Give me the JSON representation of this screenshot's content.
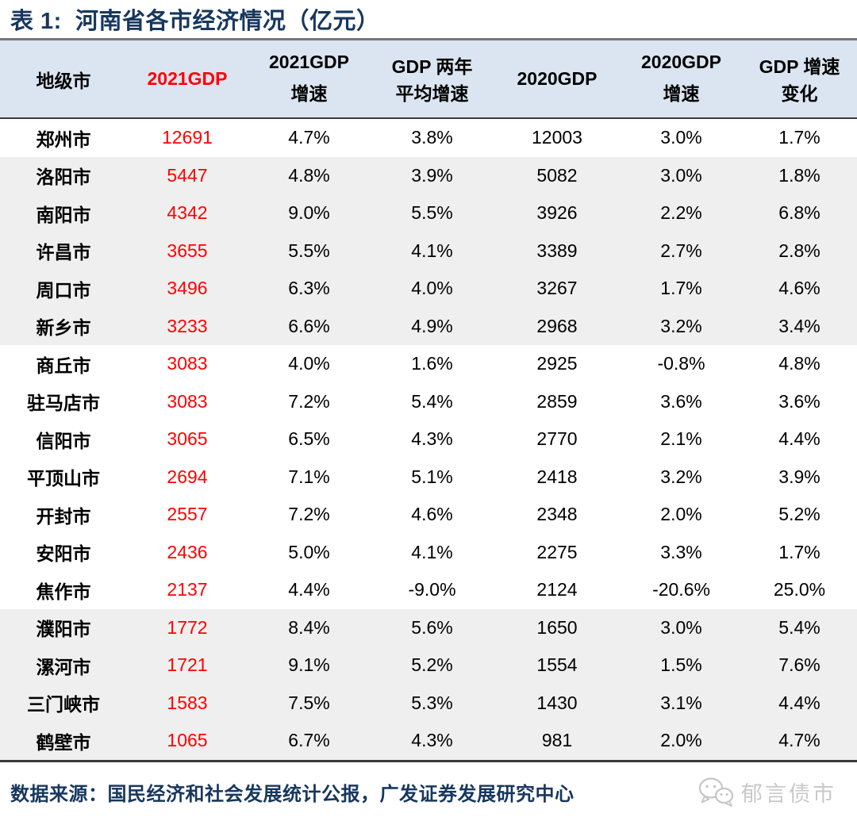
{
  "title": "表 1:  河南省各市经济情况（亿元）",
  "chart_data": {
    "type": "table",
    "title": "表 1:  河南省各市经济情况（亿元）",
    "unit": "亿元",
    "columns": [
      "地级市",
      "2021GDP",
      "2021GDP增速",
      "GDP两年平均增速",
      "2020GDP",
      "2020GDP增速",
      "GDP增速变化"
    ],
    "header_lines": [
      [
        "地级市"
      ],
      [
        "2021GDP"
      ],
      [
        "2021GDP",
        "增速"
      ],
      [
        "GDP 两年",
        "平均增速"
      ],
      [
        "2020GDP"
      ],
      [
        "2020GDP",
        "增速"
      ],
      [
        "GDP 增速",
        "变化"
      ]
    ],
    "red_header_index": 1,
    "red_value_column": 1,
    "shaded_row_indices": [
      1,
      2,
      3,
      4,
      5,
      13,
      14,
      15,
      16
    ],
    "rows": [
      [
        "郑州市",
        "12691",
        "4.7%",
        "3.8%",
        "12003",
        "3.0%",
        "1.7%"
      ],
      [
        "洛阳市",
        "5447",
        "4.8%",
        "3.9%",
        "5082",
        "3.0%",
        "1.8%"
      ],
      [
        "南阳市",
        "4342",
        "9.0%",
        "5.5%",
        "3926",
        "2.2%",
        "6.8%"
      ],
      [
        "许昌市",
        "3655",
        "5.5%",
        "4.1%",
        "3389",
        "2.7%",
        "2.8%"
      ],
      [
        "周口市",
        "3496",
        "6.3%",
        "4.0%",
        "3267",
        "1.7%",
        "4.6%"
      ],
      [
        "新乡市",
        "3233",
        "6.6%",
        "4.9%",
        "2968",
        "3.2%",
        "3.4%"
      ],
      [
        "商丘市",
        "3083",
        "4.0%",
        "1.6%",
        "2925",
        "-0.8%",
        "4.8%"
      ],
      [
        "驻马店市",
        "3083",
        "7.2%",
        "5.4%",
        "2859",
        "3.6%",
        "3.6%"
      ],
      [
        "信阳市",
        "3065",
        "6.5%",
        "4.3%",
        "2770",
        "2.1%",
        "4.4%"
      ],
      [
        "平顶山市",
        "2694",
        "7.1%",
        "5.1%",
        "2418",
        "3.2%",
        "3.9%"
      ],
      [
        "开封市",
        "2557",
        "7.2%",
        "4.6%",
        "2348",
        "2.0%",
        "5.2%"
      ],
      [
        "安阳市",
        "2436",
        "5.0%",
        "4.1%",
        "2275",
        "3.3%",
        "1.7%"
      ],
      [
        "焦作市",
        "2137",
        "4.4%",
        "-9.0%",
        "2124",
        "-20.6%",
        "25.0%"
      ],
      [
        "濮阳市",
        "1772",
        "8.4%",
        "5.6%",
        "1650",
        "3.0%",
        "5.4%"
      ],
      [
        "漯河市",
        "1721",
        "9.1%",
        "5.2%",
        "1554",
        "1.5%",
        "7.6%"
      ],
      [
        "三门峡市",
        "1583",
        "7.5%",
        "5.3%",
        "1430",
        "3.1%",
        "4.4%"
      ],
      [
        "鹤壁市",
        "1065",
        "6.7%",
        "4.3%",
        "981",
        "2.0%",
        "4.7%"
      ]
    ]
  },
  "footer": {
    "source": "数据来源：国民经济和社会发展统计公报，广发证券发展研究中心",
    "logo_text": "郁言债市",
    "logo_icon": "wechat-chat-bubbles-icon"
  },
  "colors": {
    "accent_red": "#ff0000",
    "title_navy": "#17375e",
    "header_bg": "#dbe5f1",
    "row_shade": "#efefef",
    "divider_gray": "#777777",
    "border_dark": "#3a3a3a",
    "watermark_gray": "#c9c9c9"
  }
}
